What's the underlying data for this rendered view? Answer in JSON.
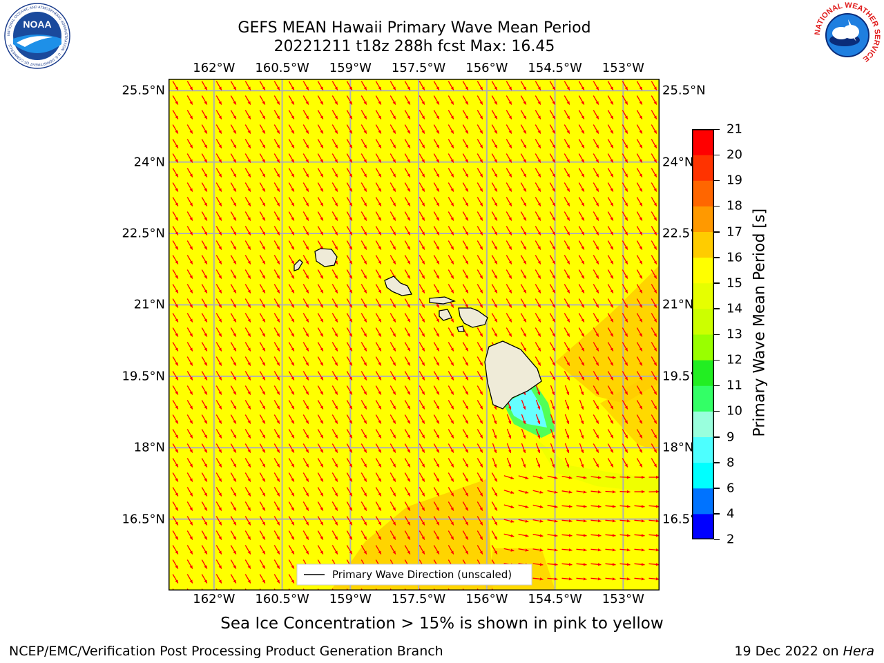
{
  "title": {
    "line1": "GEFS MEAN Hawaii Primary Wave Mean Period",
    "line2": "20221211 t18z 288h fcst   Max: 16.45"
  },
  "logos": {
    "left": {
      "name": "noaa-logo",
      "text": "NOAA",
      "ring_text": "NATIONAL OCEANIC AND ATMOSPHERIC ADMINISTRATION · U.S. DEPARTMENT OF COMMERCE"
    },
    "right": {
      "name": "nws-logo",
      "ring_text": "NATIONAL WEATHER SERVICE"
    }
  },
  "map": {
    "lon_ticks": [
      "162°W",
      "160.5°W",
      "159°W",
      "157.5°W",
      "156°W",
      "154.5°W",
      "153°W"
    ],
    "lat_ticks": [
      "25.5°N",
      "24°N",
      "22.5°N",
      "21°N",
      "19.5°N",
      "18°N",
      "16.5°N"
    ],
    "lon_range": [
      -163.0,
      -152.2
    ],
    "lat_range": [
      15.0,
      25.75
    ],
    "lon_values": [
      -162,
      -160.5,
      -159,
      -157.5,
      -156,
      -154.5,
      -153
    ],
    "lat_values": [
      25.5,
      24,
      22.5,
      21,
      19.5,
      18,
      16.5
    ],
    "field_color": "#ffff00",
    "arrow_color": "#ff0000",
    "grid_color": "#b0b0b0",
    "land_color": "#efebd8",
    "legend": "Primary Wave Direction (unscaled)"
  },
  "colorbar": {
    "label": "Primary Wave Mean Period [s]",
    "levels": [
      2,
      4,
      6,
      8,
      9,
      10,
      11,
      12,
      13,
      14,
      15,
      16,
      17,
      18,
      19,
      20,
      21
    ],
    "colors": [
      "#0000ff",
      "#0073ff",
      "#00ffff",
      "#4dffff",
      "#99ffdd",
      "#33ff66",
      "#22ee22",
      "#99ff00",
      "#ccff00",
      "#e6ff00",
      "#ffff00",
      "#ffcc00",
      "#ff9900",
      "#ff6600",
      "#ff3300",
      "#ff0000"
    ]
  },
  "caption": "Sea Ice Concentration > 15% is shown in pink to yellow",
  "footer": {
    "left": "NCEP/EMC/Verification Post Processing Product Generation Branch",
    "right_date": "19 Dec 2022 on",
    "right_host": "Hera"
  }
}
